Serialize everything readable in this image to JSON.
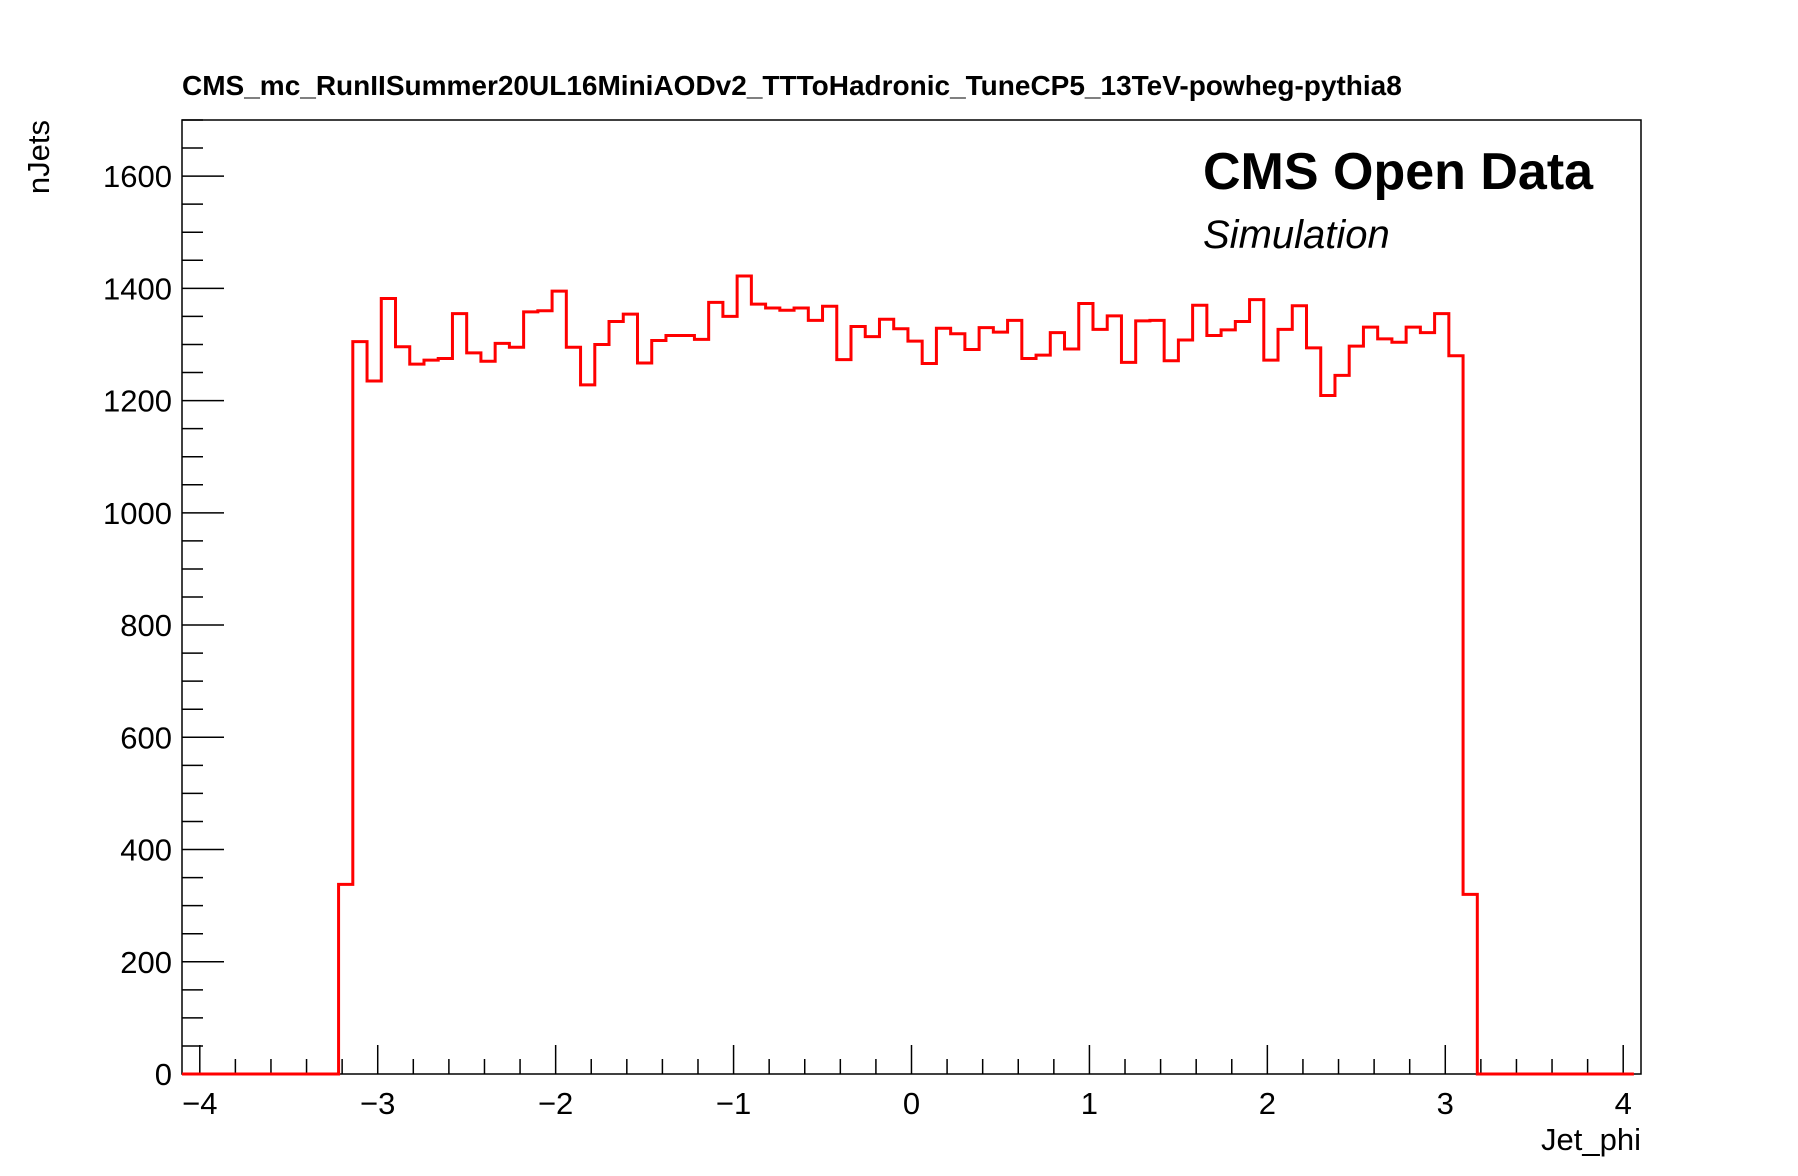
{
  "chart_data": {
    "type": "histogram",
    "title": "CMS_mc_RunIISummer20UL16MiniAODv2_TTToHadronic_TuneCP5_13TeV-powheg-pythia8",
    "xlabel": "Jet_phi",
    "ylabel": "nJets",
    "xlim": [
      -4.1,
      4.1
    ],
    "ylim": [
      0,
      1700
    ],
    "x_ticks": [
      -4,
      -3,
      -2,
      -1,
      0,
      1,
      2,
      3,
      4
    ],
    "x_tick_labels": [
      "−4",
      "−3",
      "−2",
      "−1",
      "0",
      "1",
      "2",
      "3",
      "4"
    ],
    "y_ticks": [
      0,
      200,
      400,
      600,
      800,
      1000,
      1200,
      1400,
      1600
    ],
    "y_tick_labels": [
      "0",
      "200",
      "400",
      "600",
      "800",
      "1000",
      "1200",
      "1400",
      "1600"
    ],
    "bin_low": -4.1,
    "bin_width": 0.08,
    "values": [
      0,
      0,
      0,
      0,
      0,
      0,
      0,
      0,
      0,
      0,
      0,
      338,
      1305,
      1235,
      1382,
      1296,
      1265,
      1272,
      1275,
      1355,
      1285,
      1270,
      1302,
      1295,
      1358,
      1360,
      1395,
      1295,
      1228,
      1300,
      1341,
      1354,
      1267,
      1307,
      1316,
      1316,
      1309,
      1375,
      1350,
      1422,
      1372,
      1365,
      1361,
      1365,
      1343,
      1368,
      1273,
      1332,
      1314,
      1345,
      1328,
      1306,
      1266,
      1329,
      1319,
      1291,
      1330,
      1322,
      1343,
      1275,
      1281,
      1321,
      1292,
      1373,
      1327,
      1351,
      1268,
      1342,
      1343,
      1271,
      1308,
      1370,
      1316,
      1326,
      1341,
      1380,
      1272,
      1327,
      1369,
      1294,
      1209,
      1245,
      1297,
      1331,
      1310,
      1304,
      1331,
      1321,
      1355,
      1280,
      320,
      0,
      0,
      0,
      0,
      0,
      0,
      0,
      0,
      0,
      0,
      0
    ],
    "line_color": "#ff0000",
    "grid": false
  },
  "annotations": {
    "experiment": "CMS Open Data",
    "subtitle": "Simulation"
  }
}
